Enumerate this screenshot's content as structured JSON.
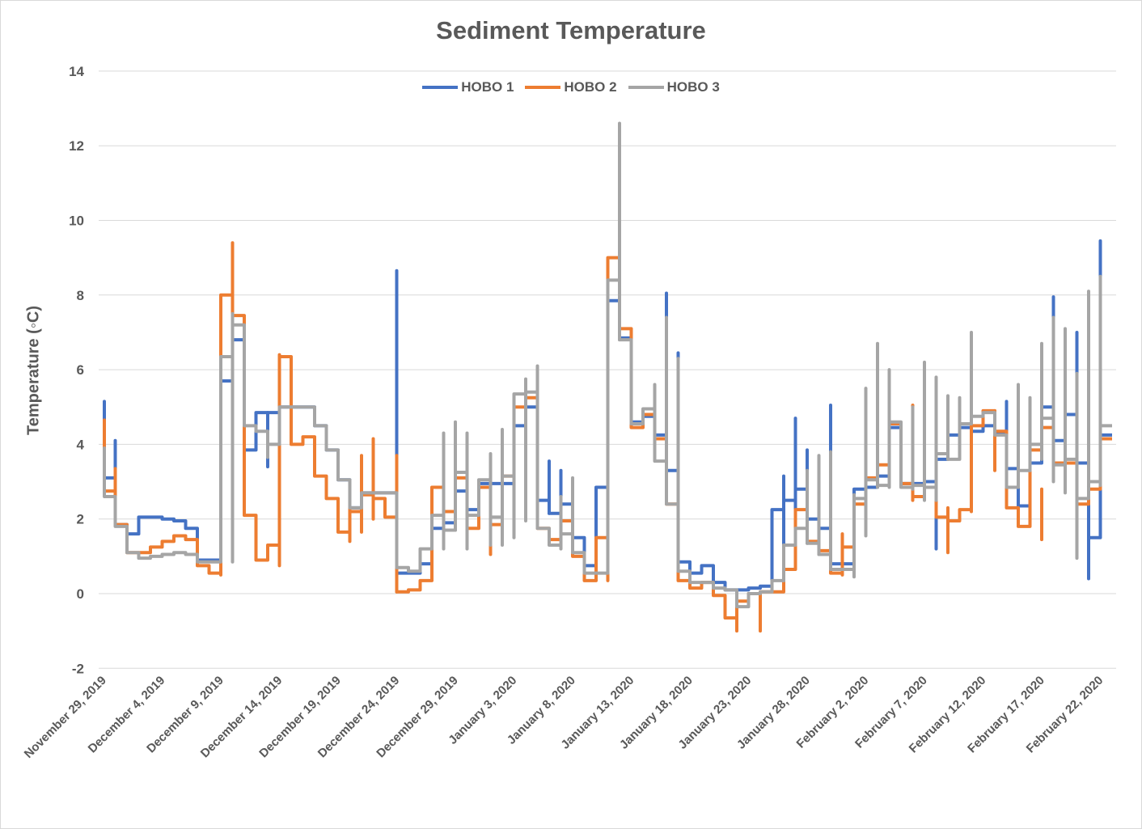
{
  "chart_data": {
    "type": "line",
    "title": "Sediment Temperature",
    "xlabel": "",
    "ylabel": "Temperature (◦C)",
    "ylim": [
      -2,
      14
    ],
    "yticks": [
      -2,
      0,
      2,
      4,
      6,
      8,
      10,
      12,
      14
    ],
    "grid": true,
    "legend": "top-center",
    "step": true,
    "xtick_labels": [
      "November 29, 2019",
      "December 4, 2019",
      "December 9, 2019",
      "December 14, 2019",
      "December 19, 2019",
      "December 24, 2019",
      "December 29, 2019",
      "January 3, 2020",
      "January 8, 2020",
      "January 13, 2020",
      "January 18, 2020",
      "January 23, 2020",
      "January 28, 2020",
      "February 2, 2020",
      "February 7, 2020",
      "February 12, 2020",
      "February 17, 2020",
      "February 22, 2020"
    ],
    "xtick_dates": [
      "2019-11-29",
      "2019-12-04",
      "2019-12-09",
      "2019-12-14",
      "2019-12-19",
      "2019-12-24",
      "2019-12-29",
      "2020-01-03",
      "2020-01-08",
      "2020-01-13",
      "2020-01-18",
      "2020-01-23",
      "2020-01-28",
      "2020-02-02",
      "2020-02-07",
      "2020-02-12",
      "2020-02-17",
      "2020-02-22"
    ],
    "x": [
      "2019-11-29",
      "2019-11-30",
      "2019-12-01",
      "2019-12-02",
      "2019-12-03",
      "2019-12-04",
      "2019-12-05",
      "2019-12-06",
      "2019-12-07",
      "2019-12-08",
      "2019-12-09",
      "2019-12-10",
      "2019-12-11",
      "2019-12-12",
      "2019-12-13",
      "2019-12-14",
      "2019-12-15",
      "2019-12-16",
      "2019-12-17",
      "2019-12-18",
      "2019-12-19",
      "2019-12-20",
      "2019-12-21",
      "2019-12-22",
      "2019-12-23",
      "2019-12-24",
      "2019-12-25",
      "2019-12-26",
      "2019-12-27",
      "2019-12-28",
      "2019-12-29",
      "2019-12-30",
      "2019-12-31",
      "2020-01-01",
      "2020-01-02",
      "2020-01-03",
      "2020-01-04",
      "2020-01-05",
      "2020-01-06",
      "2020-01-07",
      "2020-01-08",
      "2020-01-09",
      "2020-01-10",
      "2020-01-11",
      "2020-01-12",
      "2020-01-13",
      "2020-01-14",
      "2020-01-15",
      "2020-01-16",
      "2020-01-17",
      "2020-01-18",
      "2020-01-19",
      "2020-01-20",
      "2020-01-21",
      "2020-01-22",
      "2020-01-23",
      "2020-01-24",
      "2020-01-25",
      "2020-01-26",
      "2020-01-27",
      "2020-01-28",
      "2020-01-29",
      "2020-01-30",
      "2020-01-31",
      "2020-02-01",
      "2020-02-02",
      "2020-02-03",
      "2020-02-04",
      "2020-02-05",
      "2020-02-06",
      "2020-02-07",
      "2020-02-08",
      "2020-02-09",
      "2020-02-10",
      "2020-02-11",
      "2020-02-12",
      "2020-02-13",
      "2020-02-14",
      "2020-02-15",
      "2020-02-16",
      "2020-02-17",
      "2020-02-18",
      "2020-02-19",
      "2020-02-20",
      "2020-02-21",
      "2020-02-22"
    ],
    "series": [
      {
        "name": "HOBO 1",
        "color": "#4472c4",
        "values": [
          3.1,
          1.85,
          1.6,
          2.05,
          2.05,
          2.0,
          1.95,
          1.75,
          0.9,
          0.9,
          5.7,
          6.8,
          3.85,
          4.85,
          4.85,
          5.0,
          5.0,
          5.0,
          4.5,
          3.85,
          3.05,
          2.3,
          2.7,
          2.7,
          2.7,
          0.55,
          0.55,
          0.8,
          1.75,
          1.9,
          2.75,
          2.25,
          2.95,
          2.95,
          2.95,
          4.5,
          5.0,
          2.5,
          2.15,
          2.4,
          1.5,
          0.75,
          2.85,
          7.85,
          6.85,
          4.6,
          4.75,
          4.25,
          3.3,
          0.85,
          0.55,
          0.75,
          0.3,
          0.1,
          0.1,
          0.15,
          0.2,
          2.25,
          2.5,
          2.8,
          2.0,
          1.75,
          0.8,
          0.8,
          2.8,
          2.85,
          3.15,
          4.45,
          2.95,
          2.95,
          3.0,
          3.6,
          4.25,
          4.45,
          4.35,
          4.5,
          4.3,
          3.35,
          2.35,
          3.5,
          5.0,
          4.1,
          4.8,
          3.5,
          1.5,
          4.25
        ],
        "spikes": [
          [
            "2019-11-29",
            3.1,
            5.15
          ],
          [
            "2019-11-30",
            1.85,
            4.1
          ],
          [
            "2019-12-24",
            0.55,
            8.65
          ],
          [
            "2019-12-13",
            3.4,
            4.85
          ],
          [
            "2020-01-07",
            1.5,
            3.3
          ],
          [
            "2020-01-06",
            2.15,
            3.55
          ],
          [
            "2020-01-16",
            3.3,
            8.05
          ],
          [
            "2020-01-17",
            2.4,
            6.45
          ],
          [
            "2020-01-26",
            0.2,
            3.15
          ],
          [
            "2020-01-27",
            1.6,
            4.7
          ],
          [
            "2020-01-28",
            2.5,
            3.85
          ],
          [
            "2020-01-29",
            2.0,
            3.5
          ],
          [
            "2020-01-30",
            1.75,
            5.05
          ],
          [
            "2020-02-08",
            1.2,
            3.6
          ],
          [
            "2020-02-14",
            3.35,
            5.15
          ],
          [
            "2020-02-18",
            4.1,
            7.95
          ],
          [
            "2020-02-20",
            3.5,
            7.0
          ],
          [
            "2020-02-21",
            0.4,
            1.5
          ],
          [
            "2020-02-22",
            4.25,
            9.45
          ]
        ]
      },
      {
        "name": "HOBO 2",
        "color": "#ed7d31",
        "values": [
          2.75,
          1.85,
          1.1,
          1.1,
          1.25,
          1.4,
          1.55,
          1.45,
          0.75,
          0.55,
          8.0,
          7.45,
          2.1,
          0.9,
          1.3,
          6.35,
          4.0,
          4.2,
          3.15,
          2.55,
          1.65,
          2.2,
          2.65,
          2.55,
          2.05,
          0.05,
          0.1,
          0.35,
          2.85,
          2.2,
          3.1,
          1.75,
          2.85,
          1.85,
          3.15,
          5.0,
          5.25,
          1.75,
          1.45,
          1.95,
          1.0,
          0.35,
          1.5,
          9.0,
          7.1,
          4.45,
          4.8,
          4.15,
          2.4,
          0.35,
          0.15,
          0.3,
          -0.05,
          -0.65,
          -0.2,
          0.0,
          0.05,
          0.05,
          0.65,
          2.25,
          1.4,
          1.15,
          0.55,
          1.25,
          2.4,
          3.1,
          3.45,
          4.55,
          2.95,
          2.6,
          2.85,
          2.05,
          1.95,
          2.25,
          4.5,
          4.9,
          4.35,
          2.3,
          1.8,
          3.85,
          4.45,
          3.5,
          3.5,
          2.4,
          2.8,
          4.15
        ],
        "spikes": [
          [
            "2019-11-29",
            2.75,
            4.65
          ],
          [
            "2019-11-30",
            1.85,
            3.35
          ],
          [
            "2019-12-09",
            0.5,
            0.75
          ],
          [
            "2019-12-10",
            5.0,
            9.4
          ],
          [
            "2019-12-14",
            0.75,
            6.4
          ],
          [
            "2019-12-20",
            1.4,
            2.55
          ],
          [
            "2019-12-21",
            1.65,
            3.7
          ],
          [
            "2019-12-22",
            2.0,
            4.15
          ],
          [
            "2019-12-24",
            0.05,
            3.7
          ],
          [
            "2020-01-01",
            1.05,
            1.85
          ],
          [
            "2020-01-11",
            0.35,
            8.5
          ],
          [
            "2020-01-22",
            -1.0,
            -0.05
          ],
          [
            "2020-01-24",
            -1.0,
            0.0
          ],
          [
            "2020-01-31",
            0.5,
            1.6
          ],
          [
            "2020-02-06",
            2.5,
            5.05
          ],
          [
            "2020-02-09",
            1.1,
            2.3
          ],
          [
            "2020-02-11",
            2.2,
            3.6
          ],
          [
            "2020-02-13",
            3.3,
            4.9
          ],
          [
            "2020-02-17",
            1.45,
            2.8
          ],
          [
            "2020-02-22",
            2.95,
            4.15
          ]
        ]
      },
      {
        "name": "HOBO 3",
        "color": "#a5a5a5",
        "values": [
          2.6,
          1.8,
          1.1,
          0.95,
          1.0,
          1.05,
          1.1,
          1.05,
          0.85,
          0.85,
          6.35,
          7.2,
          4.5,
          4.35,
          4.0,
          5.0,
          5.0,
          5.0,
          4.5,
          3.85,
          3.05,
          2.3,
          2.7,
          2.7,
          2.7,
          0.7,
          0.6,
          1.2,
          2.1,
          1.7,
          3.25,
          2.1,
          3.05,
          2.05,
          3.15,
          5.35,
          5.4,
          1.75,
          1.3,
          1.6,
          1.1,
          0.55,
          0.55,
          8.4,
          6.8,
          4.55,
          4.95,
          3.55,
          2.4,
          0.6,
          0.3,
          0.3,
          0.15,
          0.1,
          -0.35,
          0.0,
          0.05,
          0.35,
          1.3,
          1.75,
          1.35,
          1.05,
          0.65,
          0.65,
          2.55,
          3.05,
          2.9,
          4.6,
          2.85,
          2.9,
          2.85,
          3.75,
          3.6,
          4.55,
          4.75,
          4.85,
          4.25,
          2.85,
          3.3,
          4.0,
          4.7,
          3.45,
          3.6,
          2.55,
          3.0,
          4.5
        ],
        "spikes": [
          [
            "2019-11-29",
            2.6,
            3.9
          ],
          [
            "2019-12-10",
            0.85,
            7.5
          ],
          [
            "2019-12-13",
            3.65,
            4.35
          ],
          [
            "2019-12-24",
            0.7,
            2.7
          ],
          [
            "2019-12-28",
            1.2,
            4.3
          ],
          [
            "2019-12-29",
            1.7,
            4.6
          ],
          [
            "2019-12-30",
            1.2,
            4.3
          ],
          [
            "2020-01-01",
            1.3,
            3.75
          ],
          [
            "2020-01-02",
            1.3,
            4.4
          ],
          [
            "2020-01-03",
            1.5,
            4.7
          ],
          [
            "2020-01-04",
            1.95,
            5.75
          ],
          [
            "2020-01-05",
            4.8,
            6.1
          ],
          [
            "2020-01-07",
            1.2,
            2.6
          ],
          [
            "2020-01-08",
            1.1,
            3.1
          ],
          [
            "2020-01-11",
            0.55,
            8.4
          ],
          [
            "2020-01-12",
            6.8,
            12.6
          ],
          [
            "2020-01-15",
            3.7,
            5.6
          ],
          [
            "2020-01-16",
            3.55,
            7.4
          ],
          [
            "2020-01-17",
            2.4,
            6.3
          ],
          [
            "2020-01-26",
            0.35,
            1.3
          ],
          [
            "2020-01-28",
            1.35,
            3.3
          ],
          [
            "2020-01-29",
            1.05,
            3.7
          ],
          [
            "2020-01-30",
            0.8,
            3.8
          ],
          [
            "2020-02-01",
            0.45,
            2.65
          ],
          [
            "2020-02-02",
            1.55,
            5.5
          ],
          [
            "2020-02-03",
            2.85,
            6.7
          ],
          [
            "2020-02-04",
            2.85,
            6.0
          ],
          [
            "2020-02-06",
            2.8,
            5.0
          ],
          [
            "2020-02-07",
            2.5,
            6.2
          ],
          [
            "2020-02-08",
            2.5,
            5.8
          ],
          [
            "2020-02-09",
            3.6,
            5.3
          ],
          [
            "2020-02-10",
            4.5,
            5.25
          ],
          [
            "2020-02-11",
            4.75,
            7.0
          ],
          [
            "2020-02-15",
            2.85,
            5.6
          ],
          [
            "2020-02-16",
            3.3,
            5.25
          ],
          [
            "2020-02-17",
            3.6,
            6.7
          ],
          [
            "2020-02-18",
            3.0,
            7.4
          ],
          [
            "2020-02-19",
            2.7,
            7.1
          ],
          [
            "2020-02-20",
            0.95,
            5.9
          ],
          [
            "2020-02-21",
            2.9,
            8.1
          ],
          [
            "2020-02-22",
            2.9,
            8.5
          ]
        ]
      }
    ]
  }
}
